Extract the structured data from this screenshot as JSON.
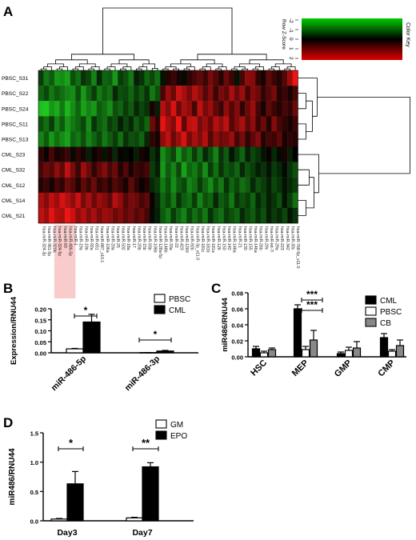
{
  "panels": {
    "A": "A",
    "B": "B",
    "C": "C",
    "D": "D"
  },
  "heatmap": {
    "rows": [
      "PBSC_S31",
      "PBSC_S22",
      "PBSC_S24",
      "PBSC_S11",
      "PBSC_S13",
      "CML_S23",
      "CML_S32",
      "CML_S12",
      "CML_S14",
      "CML_S21"
    ],
    "columns": [
      "hsa-miR-324-3p",
      "hsa-miR-361-5p",
      "hsa-miR-320b",
      "hsa-miR-324-5p",
      "hsa-miR-93",
      "hsa-miR-486-5p",
      "hsa-miR-1",
      "hsa-miR-19a",
      "hsa-miR-19b",
      "hsa-miR-92a",
      "hsa-miR-651",
      "hsa-miR-887_v10.1",
      "hsa-miR-106a",
      "hsa-miR-20a",
      "hsa-miR-25",
      "hsa-miR-502",
      "hsa-miR-18a",
      "hsa-miR-17",
      "hsa-miR-20b",
      "hsa-miR-15b",
      "hsa-miR-93b",
      "hsa-miR-106b",
      "hsa-miR-128a-5p",
      "hsa-miR-148b",
      "hsa-miR-33a",
      "hsa-miR-22",
      "hsa-miR-423",
      "hsa-miR-1260",
      "hsa-miR-92b",
      "hsa-miR-3p_v11.0",
      "hsa-miR-181c",
      "hsa-miR-181b",
      "hsa-miR-181a",
      "hsa-miR-126",
      "hsa-miR-150",
      "hsa-miR-142",
      "hsa-miR-148a",
      "hsa-miR-21",
      "hsa-miR-130",
      "hsa-miR-155",
      "hsa-miR-146a",
      "hsa-miR-26b",
      "hsa-miR-29c",
      "hsa-miR-let-7i",
      "hsa-miR-29a",
      "hsa-miR-223",
      "hsa-miR-342",
      "hsa-miR-30c",
      "hsa-miR-768-5p_v11.0"
    ],
    "highlighted_columns": [
      3,
      4,
      5,
      6
    ],
    "values": [
      [
        -0.6,
        -1.2,
        -0.9,
        -1.5,
        -1.4,
        -1.6,
        -0.8,
        -1.1,
        -0.5,
        -0.7,
        -1.3,
        -0.4,
        -1.0,
        -0.9,
        -1.5,
        -0.6,
        -0.8,
        -1.2,
        -0.3,
        -0.5,
        -1.0,
        -0.7,
        -1.1,
        -0.2,
        0.3,
        0.5,
        0.2,
        -0.1,
        0.4,
        0.6,
        0.8,
        0.5,
        1.0,
        0.7,
        0.3,
        0.9,
        0.5,
        -0.2,
        0.6,
        1.2,
        1.1,
        0.4,
        0.2,
        0.8,
        0.5,
        0.3,
        0.7,
        1.3,
        2.0
      ],
      [
        -1.0,
        -0.7,
        -1.2,
        -0.9,
        -1.1,
        -1.3,
        -1.4,
        -0.8,
        -1.5,
        -1.0,
        -0.6,
        -1.2,
        -0.9,
        -1.1,
        -0.4,
        -0.8,
        -0.7,
        -1.0,
        -0.6,
        -0.9,
        -0.5,
        -1.2,
        -0.8,
        0.6,
        1.3,
        0.9,
        1.7,
        1.4,
        1.0,
        1.5,
        1.2,
        0.7,
        1.1,
        0.5,
        1.0,
        0.8,
        1.4,
        0.9,
        1.3,
        0.6,
        1.1,
        0.9,
        0.4,
        0.7,
        1.0,
        0.3,
        0.5,
        0.2,
        0.6
      ],
      [
        -1.9,
        -2.2,
        -1.5,
        -1.7,
        -1.2,
        -1.8,
        -1.4,
        -1.0,
        -1.6,
        -1.3,
        -1.5,
        -0.9,
        -1.1,
        -1.4,
        -0.8,
        -1.0,
        -0.6,
        -0.9,
        -0.4,
        -0.7,
        -0.5,
        0.2,
        -0.3,
        1.5,
        1.1,
        1.8,
        0.9,
        1.4,
        1.2,
        0.6,
        1.6,
        1.0,
        1.3,
        0.8,
        0.5,
        1.2,
        0.7,
        1.1,
        0.4,
        0.9,
        1.3,
        0.6,
        0.2,
        0.8,
        0.5,
        0.3,
        0.6,
        0.4,
        0.9
      ],
      [
        -0.8,
        -1.1,
        -0.6,
        -1.3,
        -0.9,
        -1.5,
        -1.2,
        -1.0,
        -0.7,
        -1.4,
        -0.5,
        -0.9,
        -1.1,
        -0.6,
        -0.8,
        -0.3,
        -0.7,
        -0.4,
        -0.9,
        -0.6,
        -1.0,
        0.9,
        0.4,
        1.9,
        1.4,
        1.1,
        2.0,
        0.8,
        1.6,
        1.7,
        1.0,
        1.3,
        0.9,
        1.5,
        1.2,
        1.6,
        0.7,
        1.1,
        1.4,
        0.8,
        1.2,
        0.5,
        0.9,
        0.3,
        1.1,
        0.6,
        0.4,
        0.2,
        0.5
      ],
      [
        -1.3,
        -0.9,
        -1.5,
        -1.1,
        -1.4,
        -1.6,
        -1.0,
        -1.2,
        -0.8,
        -1.3,
        -1.0,
        -0.7,
        -1.2,
        -0.9,
        -0.6,
        -1.1,
        -0.5,
        -0.8,
        -0.7,
        -1.0,
        -0.4,
        0.4,
        0.2,
        1.2,
        1.6,
        0.9,
        1.3,
        1.8,
        1.0,
        1.4,
        1.1,
        1.5,
        0.7,
        1.2,
        0.9,
        1.0,
        1.3,
        0.6,
        1.0,
        0.4,
        0.8,
        1.1,
        0.3,
        0.6,
        0.5,
        0.8,
        0.2,
        0.4,
        0.3
      ],
      [
        0.4,
        0.1,
        0.6,
        0.2,
        0.3,
        0.5,
        -0.1,
        0.4,
        0.2,
        -0.3,
        0.1,
        0.3,
        -0.2,
        0.2,
        -0.4,
        0.1,
        -0.1,
        0.0,
        -0.3,
        0.2,
        0.1,
        -0.5,
        -0.2,
        -1.4,
        -1.0,
        -0.7,
        -1.5,
        -0.9,
        -1.2,
        -0.6,
        -1.1,
        -0.4,
        -0.8,
        -1.3,
        -0.5,
        -0.9,
        -0.2,
        -0.6,
        -1.0,
        -0.3,
        -0.7,
        -0.5,
        -0.2,
        0.1,
        -0.4,
        -0.1,
        0.2,
        -0.3,
        0.0
      ],
      [
        0.6,
        0.9,
        0.7,
        1.2,
        0.8,
        1.6,
        1.0,
        0.5,
        1.3,
        0.9,
        0.4,
        0.8,
        1.1,
        0.6,
        0.9,
        0.3,
        0.7,
        0.2,
        0.5,
        0.4,
        0.6,
        -0.6,
        -0.3,
        -1.5,
        -0.9,
        -1.3,
        -0.7,
        -1.6,
        -1.0,
        -1.2,
        -0.8,
        -1.4,
        -0.6,
        -1.1,
        -0.5,
        -0.9,
        -0.7,
        -1.0,
        -0.4,
        -0.8,
        -0.6,
        -0.3,
        -0.5,
        -0.2,
        -0.6,
        -0.4,
        -0.1,
        -0.5,
        -0.8
      ],
      [
        0.3,
        0.5,
        0.2,
        0.6,
        0.4,
        0.9,
        0.7,
        0.3,
        0.8,
        0.5,
        0.9,
        0.4,
        0.6,
        0.3,
        0.7,
        0.5,
        0.2,
        0.8,
        0.4,
        0.1,
        0.3,
        -0.4,
        -0.6,
        -1.2,
        -0.8,
        -1.4,
        -0.9,
        -0.7,
        -1.3,
        -1.1,
        -0.6,
        -1.0,
        -1.4,
        -0.8,
        -1.2,
        -0.5,
        -1.0,
        -0.7,
        -1.1,
        -0.9,
        -0.4,
        -0.8,
        -0.6,
        -0.3,
        -0.7,
        -0.5,
        -0.2,
        -0.4,
        -0.6
      ],
      [
        1.4,
        1.1,
        1.6,
        1.3,
        1.8,
        1.5,
        1.2,
        1.7,
        1.0,
        1.4,
        0.9,
        1.3,
        1.1,
        0.8,
        1.5,
        1.2,
        0.7,
        1.0,
        0.9,
        0.6,
        0.8,
        0.1,
        -0.4,
        -1.0,
        -0.7,
        -1.2,
        -0.5,
        -0.9,
        -1.1,
        -0.6,
        -1.3,
        -0.8,
        -1.0,
        -0.4,
        -0.9,
        -0.7,
        -1.2,
        -0.5,
        -0.8,
        -0.6,
        -1.0,
        -0.4,
        -0.7,
        -0.3,
        -0.5,
        -0.8,
        -0.2,
        -0.6,
        -1.1
      ],
      [
        1.6,
        1.3,
        1.9,
        1.5,
        1.4,
        2.0,
        1.7,
        1.2,
        1.5,
        1.1,
        1.4,
        1.0,
        1.3,
        1.2,
        0.9,
        1.1,
        0.8,
        1.0,
        0.7,
        0.9,
        0.6,
        -0.1,
        -0.3,
        -0.9,
        -1.2,
        -0.6,
        -1.0,
        -1.3,
        -0.7,
        -1.1,
        -0.8,
        -1.2,
        -0.5,
        -0.9,
        -1.1,
        -0.6,
        -0.8,
        -1.0,
        -0.4,
        -0.7,
        -0.9,
        -0.5,
        -0.8,
        -0.3,
        -0.6,
        -0.4,
        -0.7,
        -0.2,
        -0.5
      ]
    ],
    "color_key": {
      "title": "Color Key",
      "scale_label": "Row Z-Score",
      "ticks": [
        "-2",
        "-1",
        "0",
        "1",
        "2"
      ],
      "low_color": "#00cc00",
      "mid_color": "#000000",
      "high_color": "#dd0000"
    },
    "colors": {
      "low": "#22cc22",
      "mid": "#000000",
      "high": "#ee1111",
      "highlight": "#f4a0a0"
    }
  },
  "chart_data": [
    {
      "panel": "B",
      "type": "bar",
      "categories": [
        "miR-486-5p",
        "miR-486-3p"
      ],
      "series": [
        {
          "name": "PBSC",
          "values": [
            0.018,
            0.001
          ],
          "errors": [
            0.002,
            0.0005
          ],
          "fill": "#ffffff"
        },
        {
          "name": "CML",
          "values": [
            0.14,
            0.008
          ],
          "errors": [
            0.035,
            0.003
          ],
          "fill": "#000000"
        }
      ],
      "ylabel": "Expression/RNU44",
      "ylim": [
        0,
        0.2
      ],
      "yticks": [
        "0.00",
        "0.05",
        "0.10",
        "0.15",
        "0.20"
      ],
      "significance": [
        {
          "category": "miR-486-5p",
          "label": "*"
        },
        {
          "category": "miR-486-3p",
          "label": "*"
        }
      ],
      "legend": "top-right"
    },
    {
      "panel": "C",
      "type": "bar",
      "categories": [
        "HSC",
        "MEP",
        "GMP",
        "CMP"
      ],
      "series": [
        {
          "name": "CML",
          "values": [
            0.01,
            0.06,
            0.004,
            0.024
          ],
          "errors": [
            0.003,
            0.005,
            0.002,
            0.005
          ],
          "fill": "#000000"
        },
        {
          "name": "PBSC",
          "values": [
            0.005,
            0.009,
            0.008,
            0.007
          ],
          "errors": [
            0.002,
            0.004,
            0.004,
            0.002
          ],
          "fill": "#ffffff"
        },
        {
          "name": "CB",
          "values": [
            0.009,
            0.021,
            0.011,
            0.014
          ],
          "errors": [
            0.002,
            0.012,
            0.008,
            0.007
          ],
          "fill": "#888888"
        }
      ],
      "ylabel": "miR486/RNU44",
      "ylim": [
        0,
        0.08
      ],
      "yticks": [
        "0.00",
        "0.02",
        "0.04",
        "0.06",
        "0.08"
      ],
      "significance": [
        {
          "category": "MEP",
          "label": "***",
          "pair": "CML-CB"
        },
        {
          "category": "MEP",
          "label": "***",
          "pair": "CML-PBSC"
        }
      ],
      "legend": "top-right"
    },
    {
      "panel": "D",
      "type": "bar",
      "categories": [
        "Day3",
        "Day7"
      ],
      "series": [
        {
          "name": "GM",
          "values": [
            0.03,
            0.05
          ],
          "errors": [
            0.01,
            0.01
          ],
          "fill": "#ffffff"
        },
        {
          "name": "EPO",
          "values": [
            0.63,
            0.92
          ],
          "errors": [
            0.21,
            0.07
          ],
          "fill": "#000000"
        }
      ],
      "ylabel": "miR486/RNU44",
      "ylim": [
        0,
        1.5
      ],
      "yticks": [
        "0.0",
        "0.5",
        "1.0",
        "1.5"
      ],
      "significance": [
        {
          "category": "Day3",
          "label": "*"
        },
        {
          "category": "Day7",
          "label": "**"
        }
      ],
      "legend": "top-left"
    }
  ]
}
